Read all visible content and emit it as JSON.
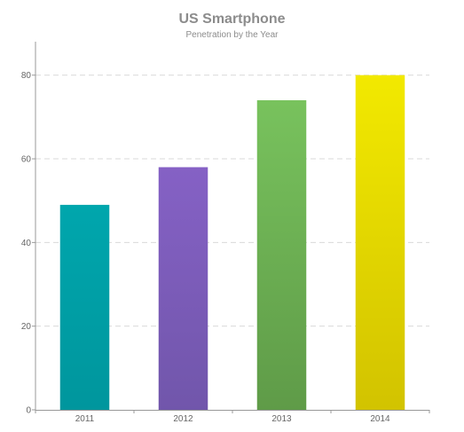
{
  "chart_data": {
    "type": "bar",
    "title": "US Smartphone",
    "subtitle": "Penetration by the Year",
    "xlabel": "",
    "ylabel": "",
    "categories": [
      "2011",
      "2012",
      "2013",
      "2014"
    ],
    "values": [
      49,
      58,
      74,
      80
    ],
    "ylim": [
      0,
      88
    ],
    "yticks": [
      0,
      20,
      40,
      60,
      80
    ],
    "grid": true,
    "legend": "none",
    "bar_colors": [
      [
        "#00a6ad",
        "#00969d"
      ],
      [
        "#8561c5",
        "#7156ab"
      ],
      [
        "#78c25d",
        "#5f9b48"
      ],
      [
        "#f2e900",
        "#d2c300"
      ]
    ],
    "grid_color": "#d9d9d9",
    "axis_color": "#999999"
  }
}
